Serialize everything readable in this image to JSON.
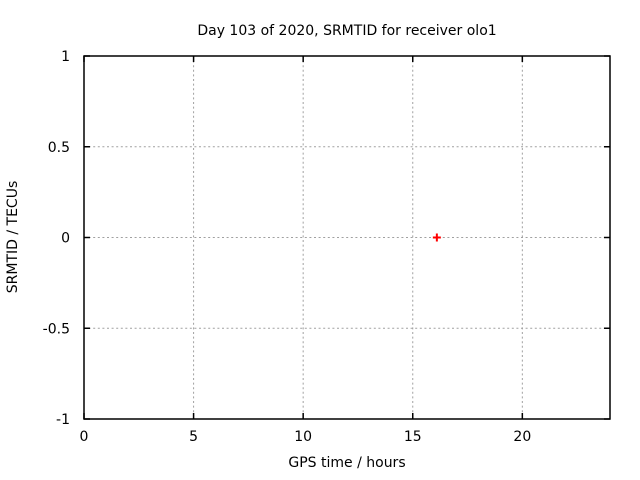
{
  "page": {
    "background": "#ffffff"
  },
  "chart_data": {
    "type": "scatter",
    "title": "Day 103 of 2020, SRMTID for receiver olo1",
    "xlabel": "GPS time / hours",
    "ylabel": "SRMTID / TECUs",
    "xlim": [
      0,
      24
    ],
    "ylim": [
      -1,
      1
    ],
    "x_ticks": [
      0,
      5,
      10,
      15,
      20
    ],
    "x_tick_labels": [
      "0",
      "5",
      "10",
      "15",
      "20"
    ],
    "y_ticks": [
      -1,
      -0.5,
      0,
      0.5,
      1
    ],
    "y_tick_labels": [
      "-1",
      "-0.5",
      "0",
      "0.5",
      "1"
    ],
    "grid": true,
    "legend": "none",
    "series": [
      {
        "name": "SRMTID",
        "marker": "plus",
        "color": "#ff0000",
        "points": [
          [
            16.1,
            0
          ]
        ]
      }
    ],
    "colors": {
      "border": "#000000",
      "grid": "#a0a0a0",
      "text": "#000000",
      "background": "#ffffff"
    }
  }
}
